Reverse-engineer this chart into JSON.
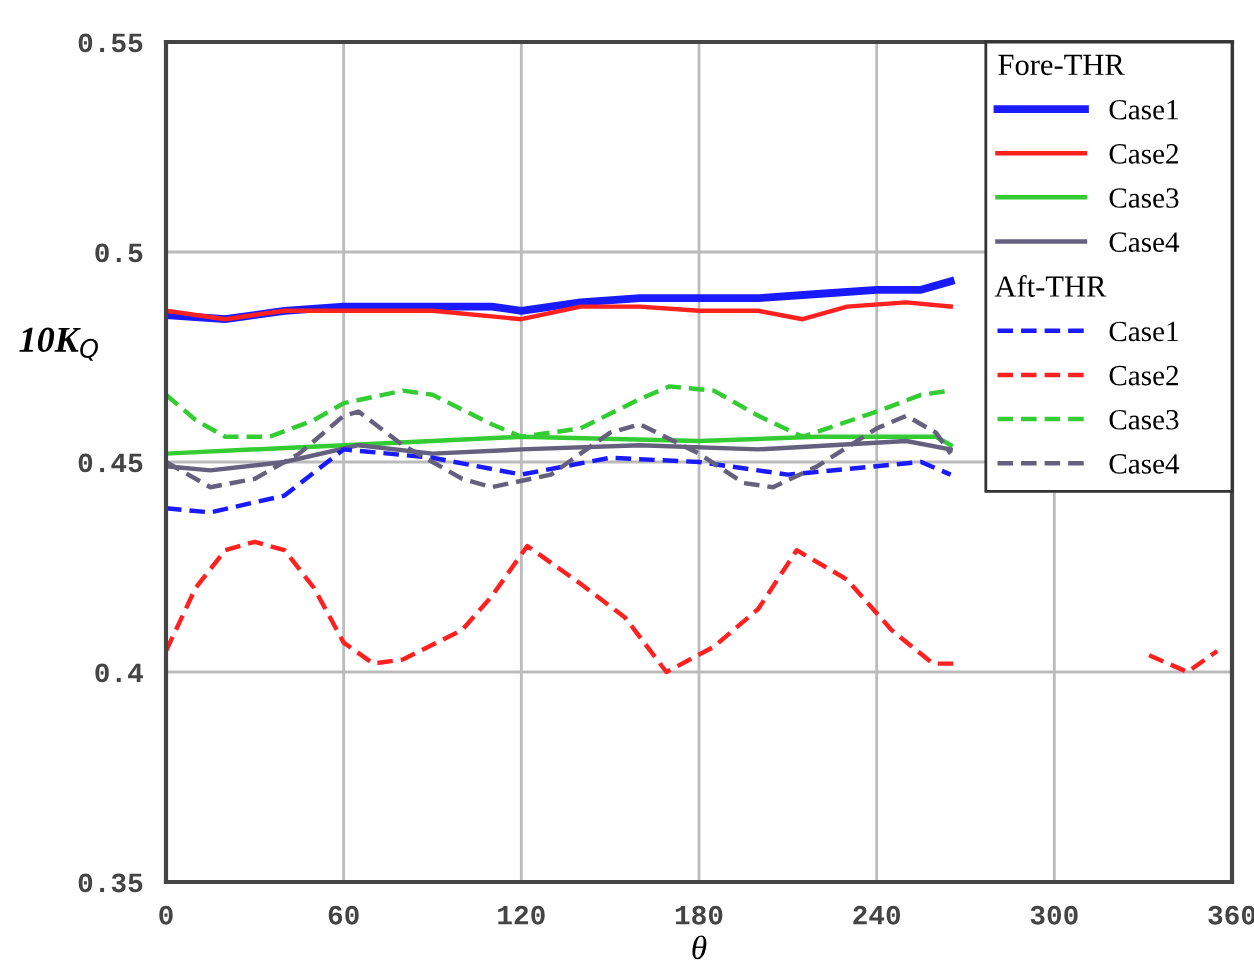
{
  "chart_data": {
    "type": "line",
    "xlabel": "θ",
    "ylabel": "10K$_{Q}$",
    "xlim": [
      0,
      360
    ],
    "ylim": [
      0.35,
      0.55
    ],
    "xticks": [
      0,
      60,
      120,
      180,
      240,
      300,
      360
    ],
    "yticks": [
      0.35,
      0.4,
      0.45,
      0.5,
      0.55
    ],
    "grid": true,
    "legend": "top right",
    "legend_title": "Fore-THR",
    "annotations": [
      "Aft-THR"
    ],
    "marker": "none",
    "series": [
      {
        "name": "Case1",
        "color": "#1a1aff",
        "line_style": "solid",
        "x": [
          0,
          20,
          40,
          60,
          90,
          110,
          120,
          140,
          160,
          180,
          200,
          220,
          240,
          255,
          265
        ],
        "values": [
          0.485,
          0.484,
          0.486,
          0.487,
          0.487,
          0.487,
          0.486,
          0.488,
          0.489,
          0.489,
          0.489,
          0.49,
          0.491,
          0.491,
          0.493
        ]
      },
      {
        "name": "Case2",
        "color": "#ff2020",
        "line_style": "solid",
        "x": [
          0,
          20,
          40,
          60,
          90,
          120,
          140,
          160,
          180,
          200,
          215,
          230,
          250,
          265
        ],
        "values": [
          0.486,
          0.484,
          0.486,
          0.486,
          0.486,
          0.484,
          0.487,
          0.487,
          0.486,
          0.486,
          0.484,
          0.487,
          0.488,
          0.487
        ]
      },
      {
        "name": "Case3",
        "color": "#33cc33",
        "line_style": "solid",
        "x": [
          0,
          60,
          120,
          180,
          220,
          260,
          265
        ],
        "values": [
          0.452,
          0.454,
          0.456,
          0.455,
          0.456,
          0.456,
          0.454
        ]
      },
      {
        "name": "Case4",
        "color": "#66607f",
        "line_style": "solid",
        "x": [
          0,
          15,
          40,
          65,
          90,
          120,
          160,
          200,
          250,
          265
        ],
        "values": [
          0.449,
          0.448,
          0.45,
          0.454,
          0.452,
          0.453,
          0.454,
          0.453,
          0.455,
          0.453
        ]
      },
      {
        "name": "Case1",
        "color": "#1a1aff",
        "line_style": "dashed",
        "x": [
          0,
          15,
          40,
          60,
          90,
          120,
          150,
          180,
          210,
          240,
          255,
          265
        ],
        "values": [
          0.439,
          0.438,
          0.442,
          0.453,
          0.451,
          0.447,
          0.451,
          0.45,
          0.447,
          0.449,
          0.45,
          0.447
        ]
      },
      {
        "name": "Case2",
        "color": "#ff2020",
        "line_style": "dashed",
        "x": [
          0,
          10,
          20,
          30,
          40,
          50,
          60,
          70,
          80,
          100,
          110,
          122,
          140,
          155,
          169,
          185,
          200,
          213,
          230,
          245,
          259,
          266,
          300,
          332,
          345,
          355
        ],
        "values": [
          0.405,
          0.42,
          0.429,
          0.431,
          0.429,
          0.42,
          0.407,
          0.402,
          0.403,
          0.41,
          0.418,
          0.43,
          0.421,
          0.413,
          0.4,
          0.406,
          0.415,
          0.429,
          0.422,
          0.41,
          0.402,
          0.402,
          null,
          0.404,
          0.4,
          0.405
        ]
      },
      {
        "name": "Case3",
        "color": "#33cc33",
        "line_style": "dashed",
        "x": [
          0,
          10,
          20,
          35,
          50,
          60,
          80,
          90,
          110,
          120,
          140,
          160,
          170,
          185,
          200,
          215,
          240,
          255,
          265
        ],
        "values": [
          0.466,
          0.46,
          0.456,
          0.456,
          0.46,
          0.464,
          0.467,
          0.466,
          0.459,
          0.456,
          0.458,
          0.465,
          0.468,
          0.467,
          0.461,
          0.456,
          0.462,
          0.466,
          0.467
        ]
      },
      {
        "name": "Case4",
        "color": "#66607f",
        "line_style": "dashed",
        "x": [
          0,
          15,
          30,
          45,
          60,
          65,
          80,
          100,
          110,
          130,
          150,
          160,
          180,
          195,
          205,
          220,
          240,
          250,
          260,
          265
        ],
        "values": [
          0.45,
          0.444,
          0.446,
          0.452,
          0.461,
          0.462,
          0.454,
          0.446,
          0.444,
          0.447,
          0.457,
          0.459,
          0.452,
          0.445,
          0.444,
          0.449,
          0.458,
          0.461,
          0.457,
          0.452
        ]
      }
    ]
  }
}
